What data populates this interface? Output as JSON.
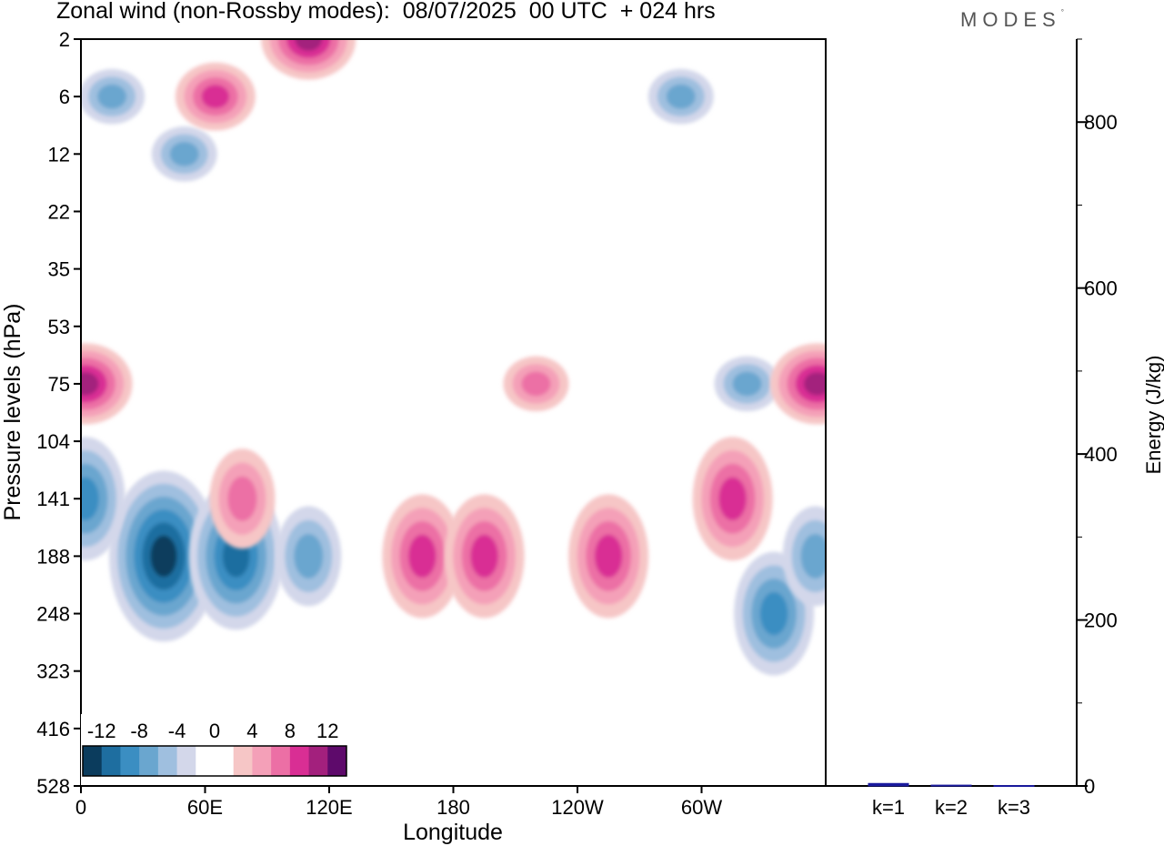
{
  "header": {
    "title": "Zonal wind (non-Rossby modes):  08/07/2025  00 UTC  + 024 hrs",
    "brand": "MODES",
    "brand_mark": "°"
  },
  "chart_data": [
    {
      "type": "heatmap",
      "title": "Zonal wind (non-Rossby modes):  08/07/2025  00 UTC  + 024 hrs",
      "xlabel": "Longitude",
      "ylabel": "Pressure levels (hPa)",
      "x_ticks": [
        "0",
        "60E",
        "120E",
        "180",
        "120W",
        "60W"
      ],
      "x_tick_degrees": [
        0,
        60,
        120,
        180,
        240,
        300
      ],
      "xlim": [
        0,
        360
      ],
      "y_ticks": [
        "2",
        "6",
        "12",
        "22",
        "35",
        "53",
        "75",
        "104",
        "141",
        "188",
        "248",
        "323",
        "416",
        "528"
      ],
      "y_scale": "model levels (categorical, top to bottom)",
      "colorbar": {
        "labels": [
          "-12",
          "-8",
          "-4",
          "0",
          "4",
          "8",
          "12"
        ],
        "colors": [
          "#0b3c5d",
          "#1e6ea0",
          "#3b8ec2",
          "#6aa6cf",
          "#9fbfdf",
          "#d3d7ea",
          "#ffffff",
          "#ffffff",
          "#f6c6c6",
          "#f4a0b8",
          "#ec6fa5",
          "#d92e94",
          "#a3207d",
          "#5e0a6b"
        ]
      },
      "features": [
        {
          "lon": 40,
          "level": "188",
          "sign": "negative",
          "peak": -12
        },
        {
          "lon": 75,
          "level": "188",
          "sign": "negative",
          "peak": -10
        },
        {
          "lon": 2,
          "level": "141",
          "sign": "negative",
          "peak": -8
        },
        {
          "lon": 110,
          "level": "188",
          "sign": "negative",
          "peak": -6
        },
        {
          "lon": 335,
          "level": "248",
          "sign": "negative",
          "peak": -8
        },
        {
          "lon": 355,
          "level": "188",
          "sign": "negative",
          "peak": -6
        },
        {
          "lon": 322,
          "level": "75",
          "sign": "negative",
          "peak": -6
        },
        {
          "lon": 290,
          "level": "6",
          "sign": "negative",
          "peak": -6
        },
        {
          "lon": 15,
          "level": "6",
          "sign": "negative",
          "peak": -6
        },
        {
          "lon": 50,
          "level": "12",
          "sign": "negative",
          "peak": -6
        },
        {
          "lon": 2,
          "level": "75",
          "sign": "positive",
          "peak": 10
        },
        {
          "lon": 165,
          "level": "188",
          "sign": "positive",
          "peak": 8
        },
        {
          "lon": 195,
          "level": "188",
          "sign": "positive",
          "peak": 8
        },
        {
          "lon": 255,
          "level": "188",
          "sign": "positive",
          "peak": 8
        },
        {
          "lon": 315,
          "level": "141",
          "sign": "positive",
          "peak": 8
        },
        {
          "lon": 356,
          "level": "75",
          "sign": "positive",
          "peak": 10
        },
        {
          "lon": 110,
          "level": "2",
          "sign": "positive",
          "peak": 10
        },
        {
          "lon": 65,
          "level": "6",
          "sign": "positive",
          "peak": 8
        },
        {
          "lon": 220,
          "level": "75",
          "sign": "positive",
          "peak": 6
        },
        {
          "lon": 78,
          "level": "141",
          "sign": "positive",
          "peak": 6
        }
      ]
    },
    {
      "type": "bar",
      "ylabel": "Energy (J/kg)",
      "categories": [
        "k=1",
        "k=2",
        "k=3"
      ],
      "values": [
        3,
        1,
        0.5
      ],
      "ylim": [
        0,
        900
      ],
      "y_ticks": [
        "0",
        "200",
        "400",
        "600",
        "800"
      ],
      "y_tick_values": [
        0,
        200,
        400,
        600,
        800
      ],
      "bar_color": "#1a1a9e"
    }
  ]
}
